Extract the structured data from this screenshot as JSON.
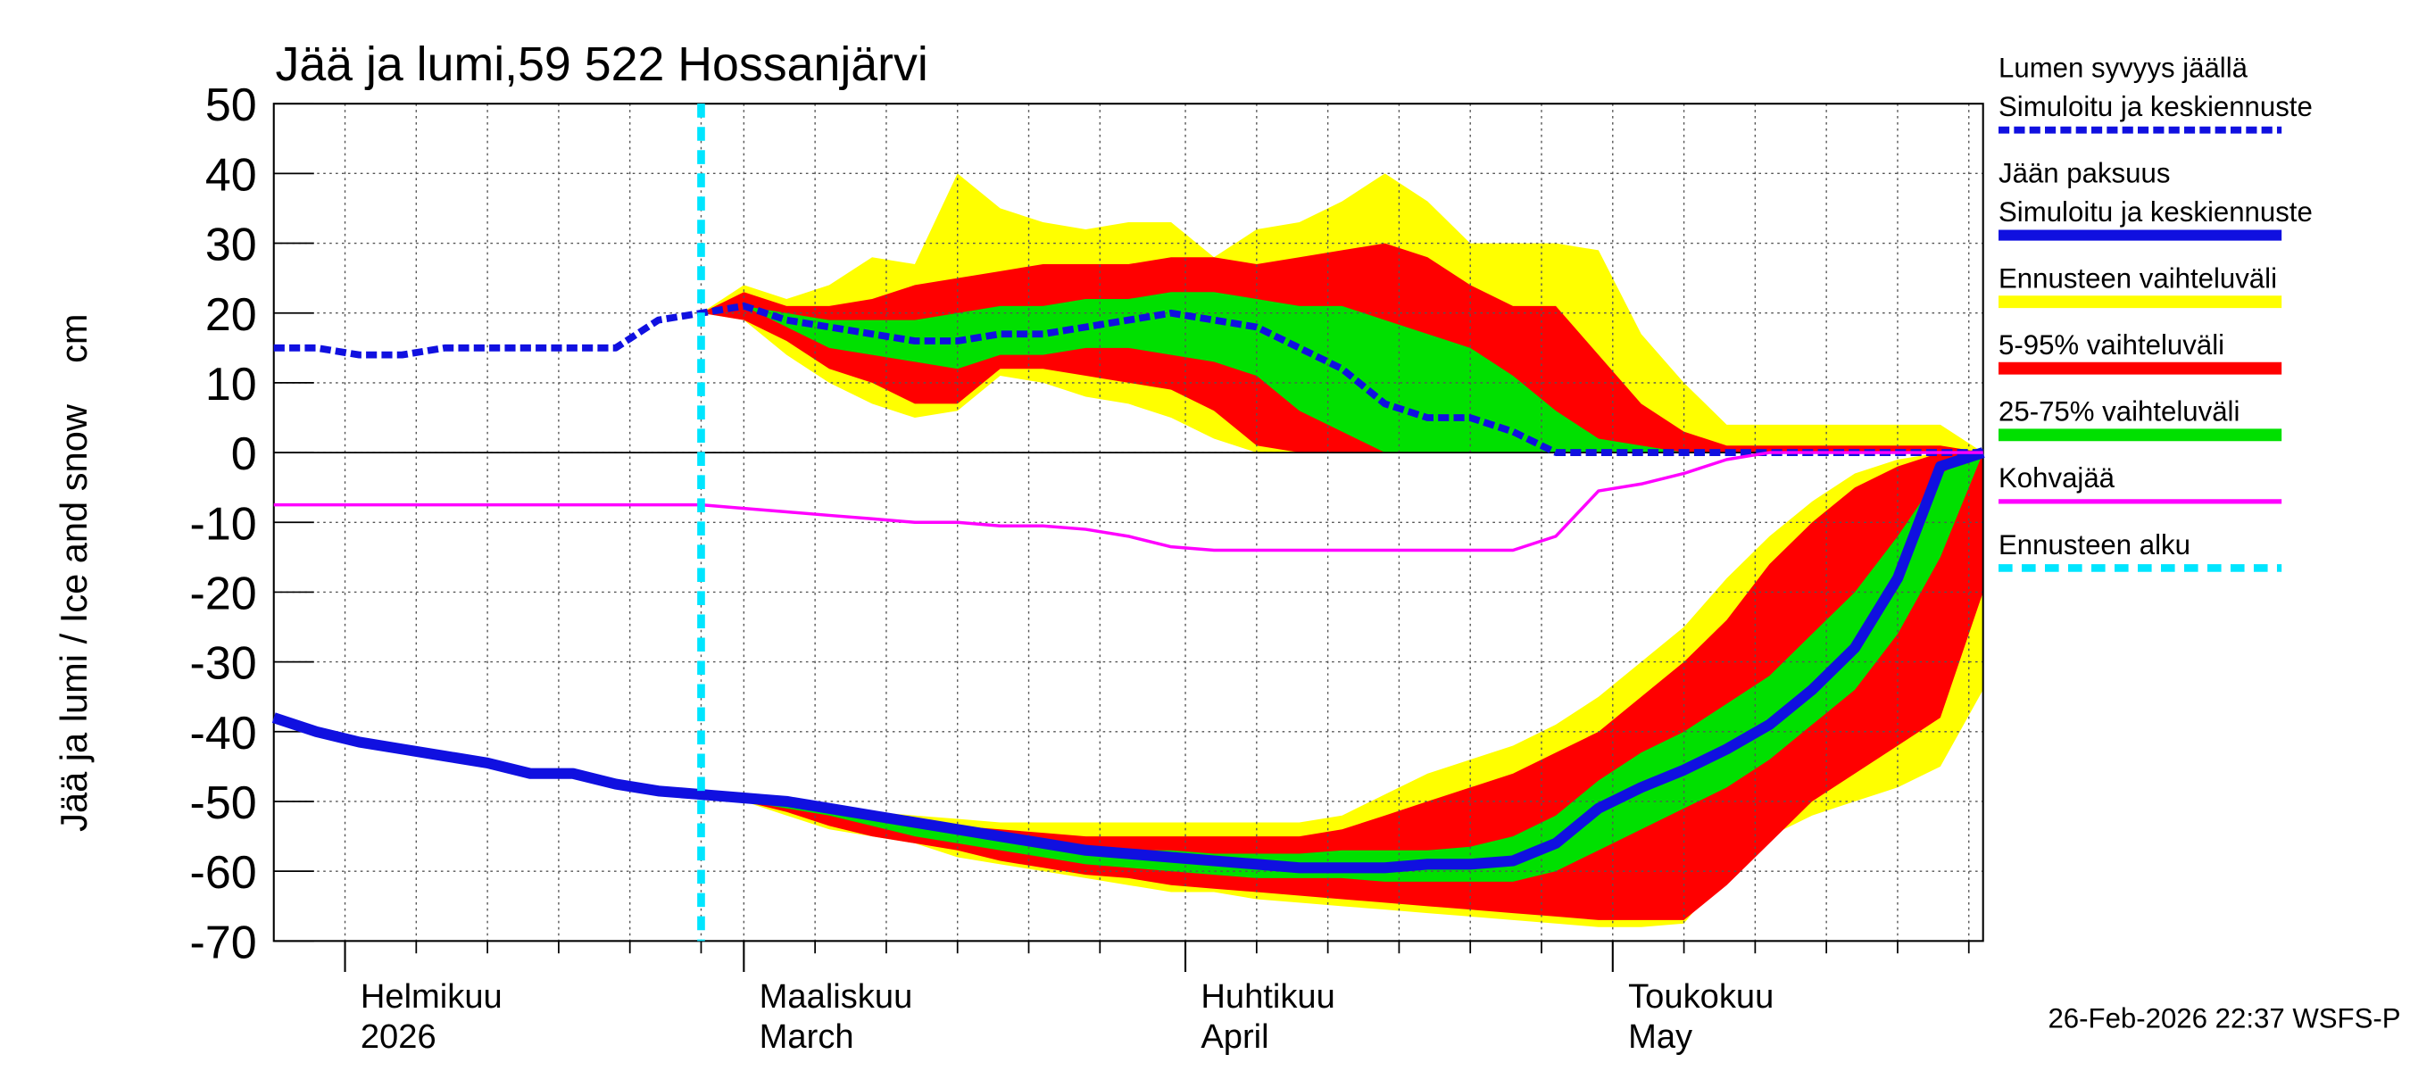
{
  "chart_data": {
    "type": "line",
    "title": "Jää ja lumi,59 522 Hossanjärvi",
    "ylabel": "Jää ja lumi / Ice and snow    cm",
    "footer": "26-Feb-2026 22:37 WSFS-P",
    "xlim": [
      27,
      147
    ],
    "ylim": [
      -70,
      50
    ],
    "yticks": [
      -70,
      -60,
      -50,
      -40,
      -30,
      -20,
      -10,
      0,
      10,
      20,
      30,
      40,
      50
    ],
    "xticks": [
      {
        "value": 32,
        "label": "Helmikuu"
      },
      {
        "value": 60,
        "label": "Maaliskuu"
      },
      {
        "value": 91,
        "label": "Huhtikuu"
      },
      {
        "value": 121,
        "label": "Toukokuu"
      }
    ],
    "xtick_sublabels": [
      "2026",
      "March",
      "April",
      "May"
    ],
    "xminorticks": [
      37,
      42,
      47,
      52,
      57,
      65,
      70,
      75,
      80,
      85,
      96,
      101,
      106,
      111,
      116,
      126,
      131,
      136,
      141,
      146
    ],
    "grid": true,
    "legend": "right",
    "x": [
      27,
      30,
      33,
      36,
      39,
      42,
      45,
      48,
      51,
      54,
      57,
      60,
      63,
      66,
      69,
      72,
      75,
      78,
      81,
      84,
      87,
      90,
      93,
      96,
      99,
      102,
      105,
      108,
      111,
      114,
      117,
      120,
      123,
      126,
      129,
      132,
      135,
      138,
      141,
      144,
      147
    ],
    "series": [
      {
        "name": "Lumen syvyys jäällä",
        "name2": "Simuloitu ja keskiennuste",
        "color": "#1010e0",
        "style": "dashed",
        "values": [
          15,
          15,
          14,
          14,
          15,
          15,
          15,
          15,
          15,
          19,
          20,
          21,
          19,
          18,
          17,
          16,
          16,
          17,
          17,
          18,
          19,
          20,
          19,
          18,
          15,
          12,
          7,
          5,
          5,
          3,
          0,
          0,
          0,
          0,
          0,
          0,
          0,
          0,
          0,
          0,
          0
        ]
      },
      {
        "name": "Jään paksuus",
        "name2": "Simuloitu ja keskiennuste",
        "color": "#1010e0",
        "style": "solid",
        "values": [
          -38,
          -40,
          -41.5,
          -42.5,
          -43.5,
          -44.5,
          -46,
          -46,
          -47.5,
          -48.5,
          -49,
          -49.5,
          -50,
          -51,
          -52,
          -53,
          -54,
          -55,
          -56,
          -57,
          -57.5,
          -58,
          -58.5,
          -59,
          -59.5,
          -59.5,
          -59.5,
          -59,
          -59,
          -58.5,
          -56,
          -51,
          -48,
          -45.5,
          -42.5,
          -39,
          -34,
          -28,
          -18,
          -2,
          0
        ]
      },
      {
        "name": "Ennusteen vaihteluväli",
        "color": "#ffff00",
        "style": "band",
        "snow_high": [
          null,
          null,
          null,
          null,
          null,
          null,
          null,
          null,
          null,
          null,
          20,
          24,
          22,
          24,
          28,
          27,
          40,
          35,
          33,
          32,
          33,
          33,
          28,
          32,
          33,
          36,
          40,
          36,
          30,
          30,
          30,
          29,
          17,
          10,
          4,
          4,
          4,
          4,
          4,
          4,
          0
        ],
        "snow_low": [
          null,
          null,
          null,
          null,
          null,
          null,
          null,
          null,
          null,
          null,
          20,
          19,
          14,
          10,
          7,
          5,
          6,
          11,
          10,
          8,
          7,
          5,
          2,
          0,
          0,
          0,
          0,
          0,
          0,
          0,
          0,
          0,
          0,
          0,
          0,
          0,
          0,
          0,
          0,
          0,
          0
        ],
        "ice_high": [
          null,
          null,
          null,
          null,
          null,
          null,
          null,
          null,
          null,
          null,
          -49,
          -49.5,
          -50,
          -51,
          -51.5,
          -52,
          -52.5,
          -53,
          -53,
          -53,
          -53,
          -53,
          -53,
          -53,
          -53,
          -52,
          -49,
          -46,
          -44,
          -42,
          -39,
          -35,
          -30,
          -25,
          -18,
          -12,
          -7,
          -3,
          -1,
          0,
          0
        ],
        "ice_low": [
          null,
          null,
          null,
          null,
          null,
          null,
          null,
          null,
          null,
          null,
          -49,
          -50,
          -52,
          -54,
          -55,
          -56,
          -58,
          -59,
          -60,
          -61,
          -62,
          -63,
          -63,
          -64,
          -64.5,
          -65,
          -65.5,
          -66,
          -66.5,
          -67,
          -67.5,
          -68,
          -68,
          -67.5,
          -60,
          -55,
          -52,
          -50,
          -48,
          -45,
          -34
        ]
      },
      {
        "name": "5-95% vaihteluväli",
        "color": "#ff0000",
        "style": "band",
        "snow_high": [
          null,
          null,
          null,
          null,
          null,
          null,
          null,
          null,
          null,
          null,
          20,
          23,
          21,
          21,
          22,
          24,
          25,
          26,
          27,
          27,
          27,
          28,
          28,
          27,
          28,
          29,
          30,
          28,
          24,
          21,
          21,
          14,
          7,
          3,
          1,
          1,
          1,
          1,
          1,
          1,
          0
        ],
        "snow_low": [
          null,
          null,
          null,
          null,
          null,
          null,
          null,
          null,
          null,
          null,
          20,
          19,
          16,
          12,
          10,
          7,
          7,
          12,
          12,
          11,
          10,
          9,
          6,
          1,
          0,
          0,
          0,
          0,
          0,
          0,
          0,
          0,
          0,
          0,
          0,
          0,
          0,
          0,
          0,
          0,
          0
        ],
        "ice_high": [
          null,
          null,
          null,
          null,
          null,
          null,
          null,
          null,
          null,
          null,
          -49,
          -49.5,
          -50,
          -51,
          -52,
          -53,
          -53.5,
          -54,
          -54.5,
          -55,
          -55,
          -55,
          -55,
          -55,
          -55,
          -54,
          -52,
          -50,
          -48,
          -46,
          -43,
          -40,
          -35,
          -30,
          -24,
          -16,
          -10,
          -5,
          -2,
          0,
          0
        ],
        "ice_low": [
          null,
          null,
          null,
          null,
          null,
          null,
          null,
          null,
          null,
          null,
          -49,
          -50,
          -51.5,
          -53.5,
          -55,
          -56,
          -57,
          -58.5,
          -59.5,
          -60.5,
          -61,
          -62,
          -62.5,
          -63,
          -63.5,
          -64,
          -64.5,
          -65,
          -65.5,
          -66,
          -66.5,
          -67,
          -67,
          -67,
          -62,
          -56,
          -50,
          -46,
          -42,
          -38,
          -20
        ]
      },
      {
        "name": "25-75% vaihteluväli",
        "color": "#00e000",
        "style": "band",
        "snow_high": [
          null,
          null,
          null,
          null,
          null,
          null,
          null,
          null,
          null,
          null,
          20,
          21,
          20,
          19,
          19,
          19,
          20,
          21,
          21,
          22,
          22,
          23,
          23,
          22,
          21,
          21,
          19,
          17,
          15,
          11,
          6,
          2,
          1,
          0,
          0,
          0,
          0,
          0,
          0,
          0,
          0
        ],
        "snow_low": [
          null,
          null,
          null,
          null,
          null,
          null,
          null,
          null,
          null,
          null,
          20,
          21,
          18,
          15,
          14,
          13,
          12,
          14,
          14,
          15,
          15,
          14,
          13,
          11,
          6,
          3,
          0,
          0,
          0,
          0,
          0,
          0,
          0,
          0,
          0,
          0,
          0,
          0,
          0,
          0,
          0
        ],
        "ice_high": [
          null,
          null,
          null,
          null,
          null,
          null,
          null,
          null,
          null,
          null,
          -49,
          -49.5,
          -50.5,
          -51.5,
          -52.5,
          -53.5,
          -54.5,
          -55.5,
          -56,
          -56.5,
          -57,
          -57,
          -57.5,
          -57.5,
          -57.5,
          -57,
          -57,
          -57,
          -56.5,
          -55,
          -52,
          -47,
          -43,
          -40,
          -36,
          -32,
          -26,
          -20,
          -12,
          -3,
          0
        ],
        "ice_low": [
          null,
          null,
          null,
          null,
          null,
          null,
          null,
          null,
          null,
          null,
          -49,
          -50,
          -51,
          -52,
          -53.5,
          -55,
          -56,
          -57,
          -58,
          -59,
          -59.5,
          -60,
          -60.5,
          -61,
          -61,
          -61,
          -61.5,
          -61.5,
          -61.5,
          -61.5,
          -60,
          -57,
          -54,
          -51,
          -48,
          -44,
          -39,
          -34,
          -26,
          -15,
          0
        ]
      },
      {
        "name": "Kohvajää",
        "color": "#ff00ff",
        "style": "thin",
        "values": [
          -7.5,
          -7.5,
          -7.5,
          -7.5,
          -7.5,
          -7.5,
          -7.5,
          -7.5,
          -7.5,
          -7.5,
          -7.5,
          -8,
          -8.5,
          -9,
          -9.5,
          -10,
          -10,
          -10.5,
          -10.5,
          -11,
          -12,
          -13.5,
          -14,
          -14,
          -14,
          -14,
          -14,
          -14,
          -14,
          -14,
          -12,
          -5.5,
          -4.5,
          -3,
          -1,
          0,
          0,
          0,
          0,
          0,
          0
        ]
      },
      {
        "name": "Ennusteen alku",
        "color": "#00e5ff",
        "style": "vline",
        "x_at": 57
      }
    ]
  }
}
